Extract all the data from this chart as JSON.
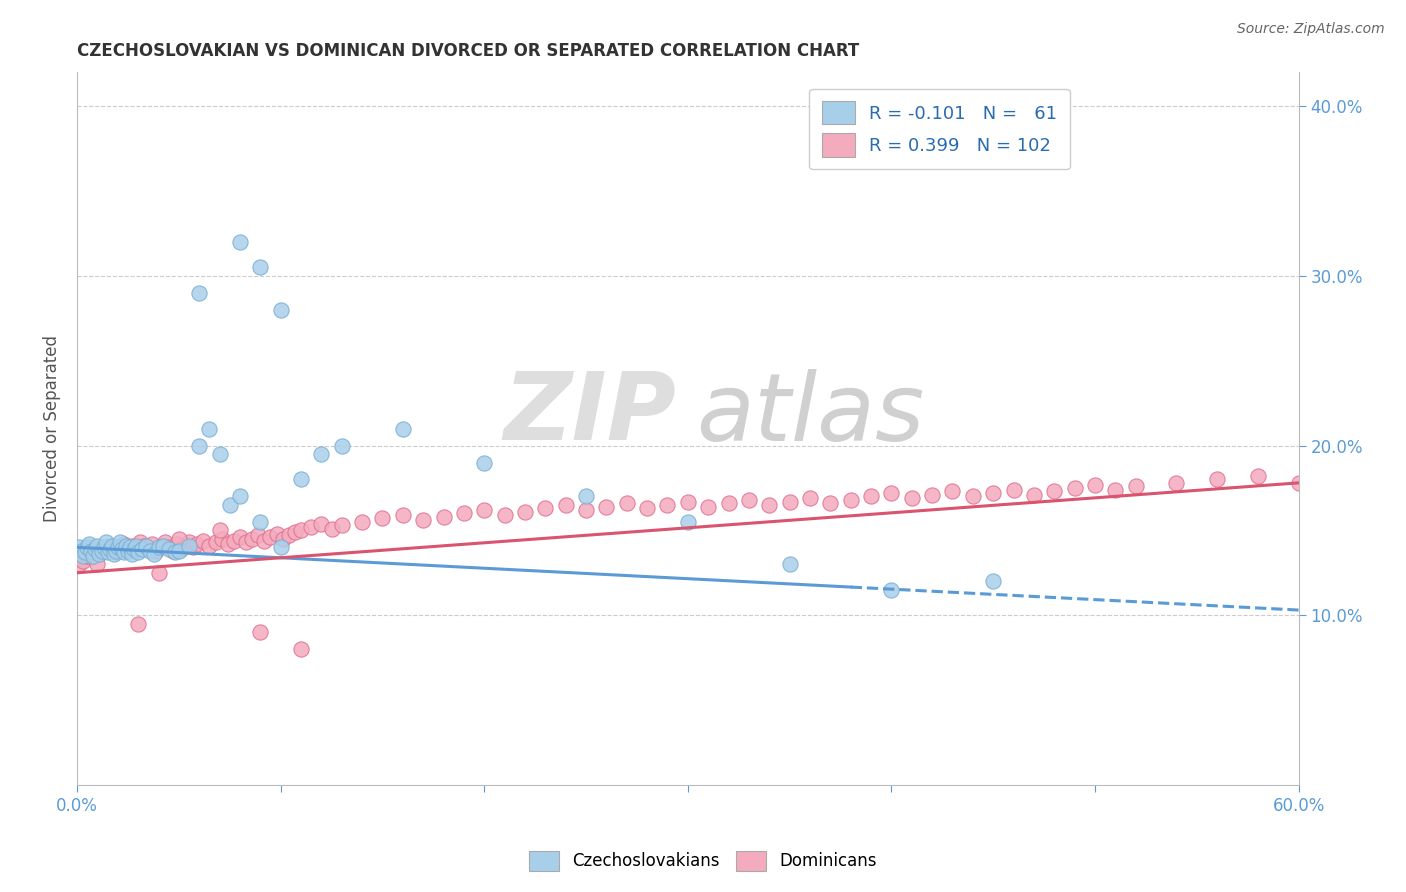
{
  "title": "CZECHOSLOVAKIAN VS DOMINICAN DIVORCED OR SEPARATED CORRELATION CHART",
  "source": "Source: ZipAtlas.com",
  "ylabel": "Divorced or Separated",
  "xlim": [
    0.0,
    0.6
  ],
  "ylim": [
    0.0,
    0.42
  ],
  "blue_color": "#A8CFEA",
  "pink_color": "#F4ABBE",
  "blue_line_color": "#5B9BD5",
  "pink_line_color": "#D9546E",
  "blue_edge_color": "#7AAFD4",
  "pink_edge_color": "#E07090",
  "watermark_zip": "ZIP",
  "watermark_atlas": "atlas",
  "legend_line1": "R = -0.101   N =   61",
  "legend_line2": "R = 0.399   N = 102",
  "blue_regression": [
    0.0,
    0.6,
    0.14,
    0.103
  ],
  "pink_regression": [
    0.0,
    0.6,
    0.125,
    0.178
  ],
  "blue_x": [
    0.001,
    0.002,
    0.003,
    0.004,
    0.005,
    0.006,
    0.007,
    0.008,
    0.009,
    0.01,
    0.011,
    0.012,
    0.013,
    0.014,
    0.015,
    0.016,
    0.017,
    0.018,
    0.019,
    0.02,
    0.021,
    0.022,
    0.023,
    0.024,
    0.025,
    0.026,
    0.027,
    0.028,
    0.029,
    0.03,
    0.032,
    0.034,
    0.036,
    0.038,
    0.04,
    0.042,
    0.045,
    0.048,
    0.05,
    0.055,
    0.06,
    0.065,
    0.07,
    0.075,
    0.08,
    0.09,
    0.1,
    0.06,
    0.08,
    0.09,
    0.1,
    0.11,
    0.12,
    0.13,
    0.16,
    0.2,
    0.25,
    0.3,
    0.35,
    0.4,
    0.45
  ],
  "blue_y": [
    0.14,
    0.138,
    0.135,
    0.137,
    0.14,
    0.142,
    0.138,
    0.135,
    0.139,
    0.141,
    0.136,
    0.138,
    0.14,
    0.143,
    0.137,
    0.139,
    0.141,
    0.136,
    0.138,
    0.14,
    0.143,
    0.139,
    0.137,
    0.141,
    0.138,
    0.14,
    0.136,
    0.139,
    0.141,
    0.137,
    0.139,
    0.141,
    0.138,
    0.136,
    0.14,
    0.141,
    0.139,
    0.137,
    0.138,
    0.141,
    0.2,
    0.21,
    0.195,
    0.165,
    0.17,
    0.155,
    0.14,
    0.29,
    0.32,
    0.305,
    0.28,
    0.18,
    0.195,
    0.2,
    0.21,
    0.19,
    0.17,
    0.155,
    0.13,
    0.115,
    0.12
  ],
  "pink_x": [
    0.001,
    0.003,
    0.005,
    0.007,
    0.009,
    0.011,
    0.013,
    0.015,
    0.017,
    0.019,
    0.021,
    0.023,
    0.025,
    0.027,
    0.029,
    0.031,
    0.033,
    0.035,
    0.037,
    0.039,
    0.041,
    0.043,
    0.045,
    0.047,
    0.049,
    0.051,
    0.053,
    0.055,
    0.057,
    0.059,
    0.062,
    0.065,
    0.068,
    0.071,
    0.074,
    0.077,
    0.08,
    0.083,
    0.086,
    0.089,
    0.092,
    0.095,
    0.098,
    0.101,
    0.104,
    0.107,
    0.11,
    0.115,
    0.12,
    0.125,
    0.13,
    0.14,
    0.15,
    0.16,
    0.17,
    0.18,
    0.19,
    0.2,
    0.21,
    0.22,
    0.23,
    0.24,
    0.25,
    0.26,
    0.27,
    0.28,
    0.29,
    0.3,
    0.31,
    0.32,
    0.33,
    0.34,
    0.35,
    0.36,
    0.37,
    0.38,
    0.39,
    0.4,
    0.41,
    0.42,
    0.43,
    0.44,
    0.45,
    0.46,
    0.47,
    0.48,
    0.49,
    0.5,
    0.51,
    0.52,
    0.54,
    0.56,
    0.58,
    0.6,
    0.01,
    0.02,
    0.03,
    0.04,
    0.05,
    0.07,
    0.09,
    0.11
  ],
  "pink_y": [
    0.13,
    0.132,
    0.135,
    0.134,
    0.137,
    0.136,
    0.138,
    0.14,
    0.139,
    0.137,
    0.14,
    0.142,
    0.138,
    0.141,
    0.139,
    0.143,
    0.141,
    0.14,
    0.142,
    0.138,
    0.141,
    0.143,
    0.14,
    0.138,
    0.142,
    0.139,
    0.141,
    0.143,
    0.14,
    0.142,
    0.144,
    0.141,
    0.143,
    0.145,
    0.142,
    0.144,
    0.146,
    0.143,
    0.145,
    0.147,
    0.144,
    0.146,
    0.148,
    0.145,
    0.147,
    0.149,
    0.15,
    0.152,
    0.154,
    0.151,
    0.153,
    0.155,
    0.157,
    0.159,
    0.156,
    0.158,
    0.16,
    0.162,
    0.159,
    0.161,
    0.163,
    0.165,
    0.162,
    0.164,
    0.166,
    0.163,
    0.165,
    0.167,
    0.164,
    0.166,
    0.168,
    0.165,
    0.167,
    0.169,
    0.166,
    0.168,
    0.17,
    0.172,
    0.169,
    0.171,
    0.173,
    0.17,
    0.172,
    0.174,
    0.171,
    0.173,
    0.175,
    0.177,
    0.174,
    0.176,
    0.178,
    0.18,
    0.182,
    0.178,
    0.13,
    0.14,
    0.095,
    0.125,
    0.145,
    0.15,
    0.09,
    0.08
  ]
}
